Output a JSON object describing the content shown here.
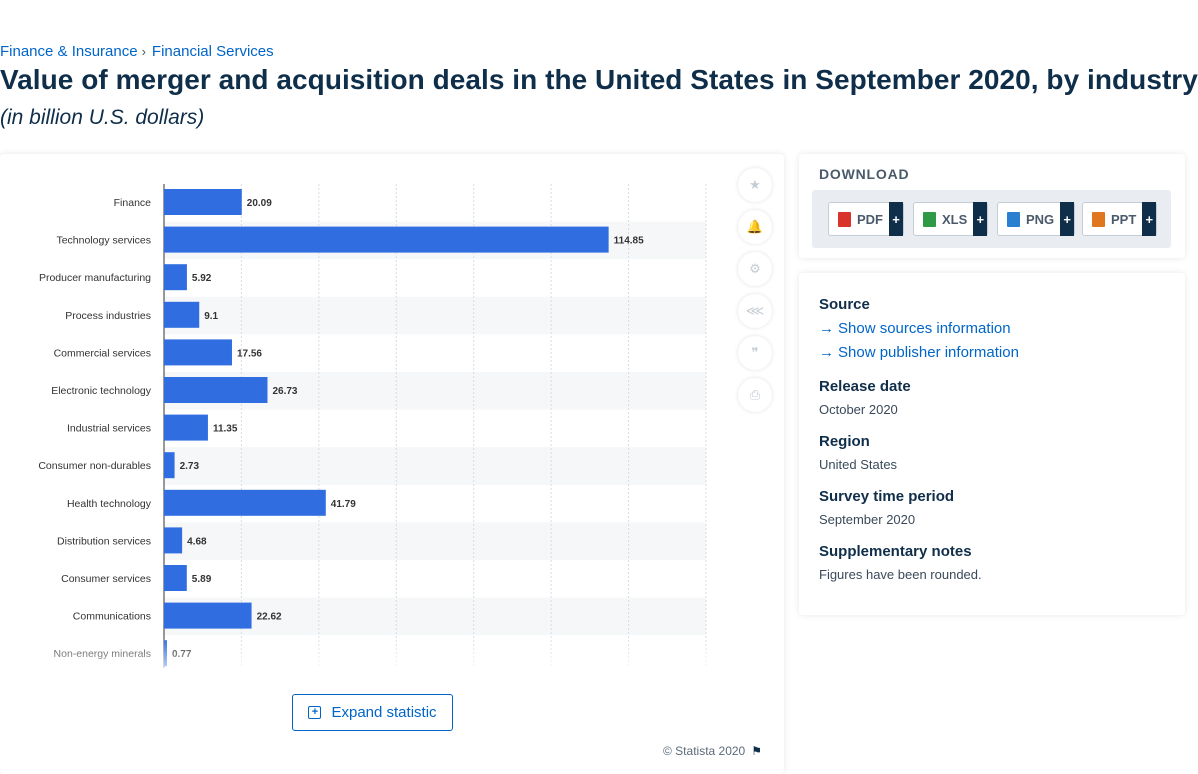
{
  "breadcrumb": {
    "items": [
      "Finance & Insurance",
      "Financial Services"
    ],
    "separator": "›"
  },
  "page": {
    "title": "Value of merger and acquisition deals in the United States in September 2020, by industry",
    "subtitle": "(in billion U.S. dollars)"
  },
  "chart_data": {
    "type": "bar",
    "orientation": "horizontal",
    "categories": [
      "Finance",
      "Technology services",
      "Producer manufacturing",
      "Process industries",
      "Commercial services",
      "Electronic technology",
      "Industrial services",
      "Consumer non-durables",
      "Health technology",
      "Distribution services",
      "Consumer services",
      "Communications",
      "Non-energy minerals"
    ],
    "values": [
      20.09,
      114.85,
      5.92,
      9.1,
      17.56,
      26.73,
      11.35,
      2.73,
      41.79,
      4.68,
      5.89,
      22.62,
      0.77
    ],
    "value_labels": [
      "20.09",
      "114.85",
      "5.92",
      "9.1",
      "17.56",
      "26.73",
      "11.35",
      "2.73",
      "41.79",
      "4.68",
      "5.89",
      "22.62",
      "0.77"
    ],
    "xlim": [
      0,
      140
    ],
    "grid": true,
    "bar_color": "#2f6de1"
  },
  "tools": {
    "icons": [
      "star-icon",
      "bell-icon",
      "gear-icon",
      "share-icon",
      "quote-icon",
      "print-icon"
    ],
    "glyphs": [
      "★",
      "🔔",
      "⚙",
      "⋘",
      "❞",
      "⎙"
    ]
  },
  "chart_footer": {
    "expand_label": "Expand statistic",
    "expand_plus": "+",
    "copyright": "© Statista 2020",
    "flag": "⚑"
  },
  "download": {
    "title": "DOWNLOAD",
    "buttons": [
      {
        "label": "PDF",
        "plus": "+",
        "color": "#d9342b"
      },
      {
        "label": "XLS",
        "plus": "+",
        "color": "#2f9a45"
      },
      {
        "label": "PNG",
        "plus": "+",
        "color": "#2a7fd0"
      },
      {
        "label": "PPT",
        "plus": "+",
        "color": "#e0771f"
      }
    ]
  },
  "info": {
    "source_heading": "Source",
    "show_sources": "Show sources information",
    "show_publisher": "Show publisher information",
    "arrow": "→",
    "release_heading": "Release date",
    "release_value": "October 2020",
    "region_heading": "Region",
    "region_value": "United States",
    "survey_heading": "Survey time period",
    "survey_value": "September 2020",
    "notes_heading": "Supplementary notes",
    "notes_value": "Figures have been rounded."
  }
}
